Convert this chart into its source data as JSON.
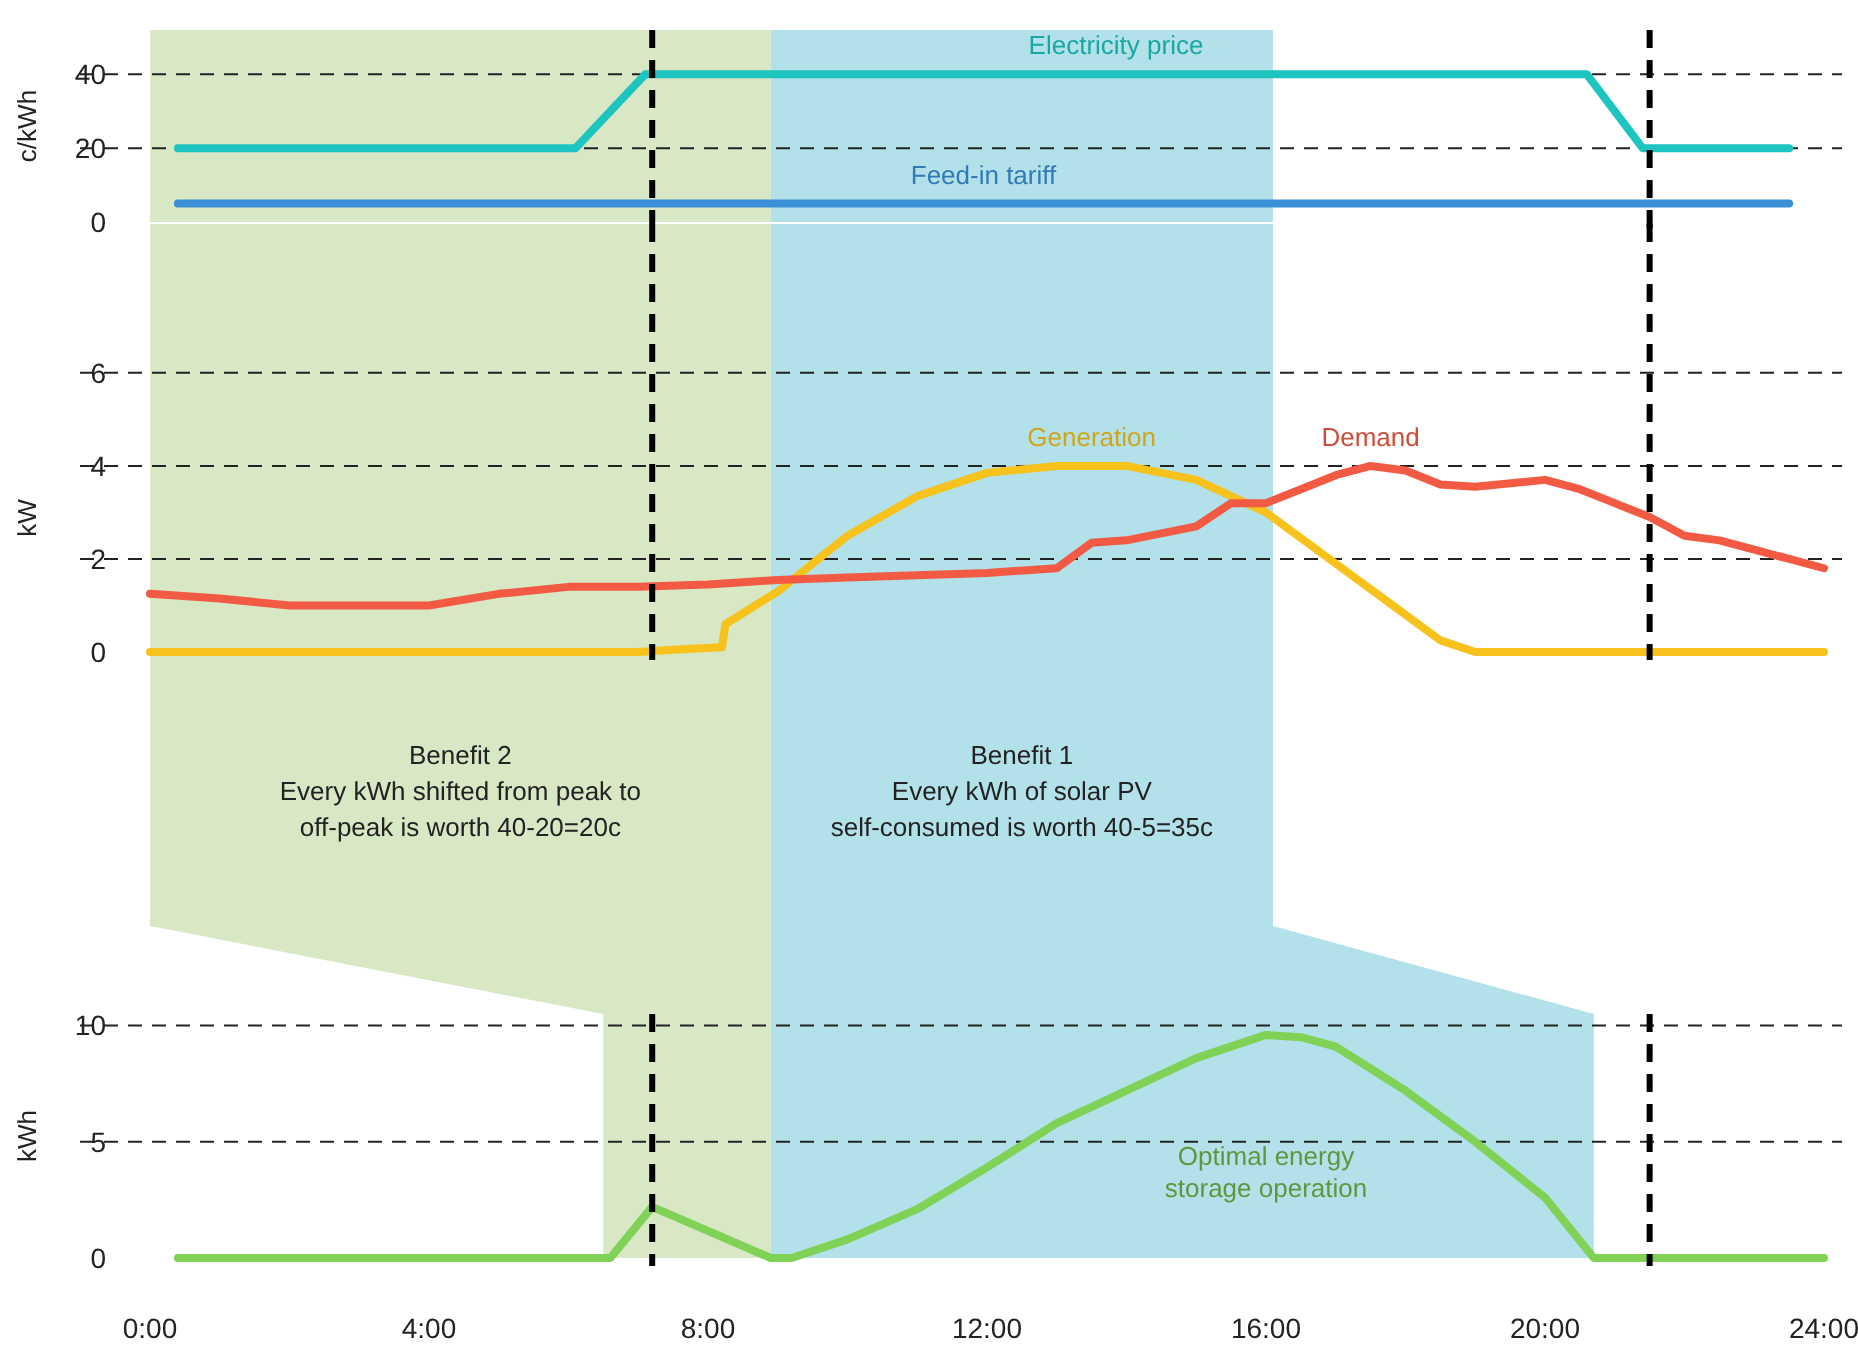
{
  "chart_data": [
    {
      "type": "line",
      "ylabel": "c/kWh",
      "xlim": [
        0,
        24
      ],
      "ylim": [
        0,
        52
      ],
      "yticks": [
        0,
        20,
        40
      ],
      "grid": "y",
      "tick_labels": "y",
      "series": [
        {
          "name": "Electricity price",
          "color": "#1ec4bf",
          "x": [
            0.4,
            6.1,
            7.1,
            20.6,
            21.4,
            23.5
          ],
          "values": [
            20,
            20,
            40,
            40,
            20,
            20
          ]
        },
        {
          "name": "Feed-in tariff",
          "color": "#3b8fd6",
          "x": [
            0.4,
            23.5
          ],
          "values": [
            5,
            5
          ]
        }
      ],
      "bands": [
        {
          "axis": "x",
          "from": 0,
          "to": 8.9,
          "color": "#d8e7c4"
        },
        {
          "axis": "x",
          "from": 8.9,
          "to": 16.1,
          "color": "#b2e1ea"
        }
      ],
      "ref_lines": [
        {
          "axis": "x",
          "value": 7.2,
          "line_style": "dashed"
        },
        {
          "axis": "x",
          "value": 21.5,
          "line_style": "dashed"
        }
      ]
    },
    {
      "type": "line",
      "ylabel": "kW",
      "xlim": [
        0,
        24
      ],
      "ylim": [
        0,
        9.2
      ],
      "yticks": [
        0,
        2,
        4,
        6
      ],
      "grid": "y",
      "tick_labels": "y",
      "series": [
        {
          "name": "Generation",
          "color": "#f7c21c",
          "x": [
            0,
            2,
            4,
            6,
            7,
            7.5,
            8.2,
            8.25,
            9,
            10,
            11,
            12,
            13,
            14,
            15,
            16,
            17,
            18,
            18.5,
            19,
            20,
            22,
            24
          ],
          "values": [
            0,
            0,
            0,
            0,
            0,
            0.05,
            0.1,
            0.6,
            1.3,
            2.5,
            3.35,
            3.85,
            4.0,
            4.0,
            3.7,
            3.0,
            1.9,
            0.8,
            0.25,
            0,
            0,
            0,
            0
          ]
        },
        {
          "name": "Demand",
          "color": "#f25a44",
          "x": [
            0,
            1,
            2,
            3,
            4,
            5,
            6,
            7,
            8,
            8.5,
            9,
            10,
            11,
            12,
            13,
            13.5,
            14,
            15,
            15.5,
            16,
            16.5,
            17,
            17.5,
            18,
            18.5,
            19,
            20,
            20.5,
            21,
            21.5,
            22,
            22.5,
            23,
            23.5,
            24
          ],
          "values": [
            1.25,
            1.15,
            1.0,
            1.0,
            1.0,
            1.25,
            1.4,
            1.4,
            1.45,
            1.5,
            1.55,
            1.6,
            1.65,
            1.7,
            1.8,
            2.35,
            2.4,
            2.7,
            3.2,
            3.2,
            3.5,
            3.8,
            4.0,
            3.9,
            3.6,
            3.55,
            3.7,
            3.5,
            3.2,
            2.9,
            2.5,
            2.4,
            2.2,
            2.0,
            1.8
          ]
        }
      ],
      "bands": [
        {
          "axis": "x",
          "from": 0,
          "to": 8.9,
          "color": "#d8e7c4"
        },
        {
          "axis": "x",
          "from": 8.9,
          "to": 16.1,
          "color": "#b2e1ea"
        }
      ],
      "ref_lines": [
        {
          "axis": "x",
          "value": 7.2,
          "line_style": "dashed"
        },
        {
          "axis": "x",
          "value": 21.5,
          "line_style": "dashed"
        }
      ],
      "annotations": [
        "Benefit 2\nEvery kWh shifted from peak to\noff-peak is worth 40-20=20c",
        "Benefit 1\nEvery kWh of solar PV\nself-consumed  is worth 40-5=35c"
      ]
    },
    {
      "type": "line",
      "ylabel": "kWh",
      "xlim": [
        0,
        24
      ],
      "xticks": [
        {
          "value": 0,
          "label": "0:00"
        },
        {
          "value": 4,
          "label": "4:00"
        },
        {
          "value": 8,
          "label": "8:00"
        },
        {
          "value": 12,
          "label": "12:00"
        },
        {
          "value": 16,
          "label": "16:00"
        },
        {
          "value": 20,
          "label": "20:00"
        },
        {
          "value": 24,
          "label": "24:00"
        }
      ],
      "ylim": [
        0,
        10.5
      ],
      "yticks": [
        0,
        5,
        10
      ],
      "grid": "y",
      "series": [
        {
          "name": "Optimal energy storage operation",
          "color": "#7fd255",
          "x": [
            0.4,
            6.6,
            7.2,
            8.9,
            9.2,
            10,
            11,
            12,
            13,
            14,
            15,
            16,
            16.5,
            17,
            18,
            19,
            20,
            20.7,
            24
          ],
          "values": [
            0,
            0,
            2.2,
            0,
            0,
            0.8,
            2.1,
            3.9,
            5.8,
            7.2,
            8.6,
            9.6,
            9.5,
            9.1,
            7.2,
            5.0,
            2.6,
            0,
            0
          ]
        }
      ],
      "bands": [
        {
          "axis": "x",
          "from": 6.5,
          "to": 8.9,
          "color": "#d8e7c4"
        },
        {
          "axis": "x",
          "from": 8.9,
          "to": 20.7,
          "color": "#b2e1ea"
        }
      ],
      "ref_lines": [
        {
          "axis": "x",
          "value": 7.2,
          "line_style": "dashed"
        },
        {
          "axis": "x",
          "value": 21.5,
          "line_style": "dashed"
        }
      ]
    }
  ]
}
